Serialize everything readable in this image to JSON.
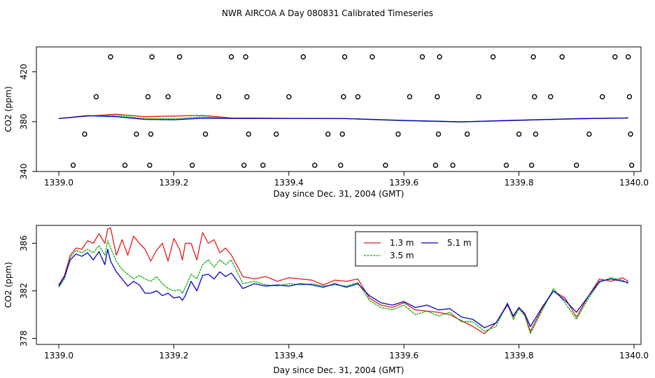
{
  "title": "NWR AIRCOA A  Day 080831  Calibrated Timeseries",
  "chart_data": [
    {
      "type": "line",
      "panel": "top",
      "title": "NWR AIRCOA A  Day 080831  Calibrated Timeseries",
      "xlabel": "Day since Dec. 31, 2004 (GMT)",
      "ylabel": "CO2 (ppm)",
      "xlim": [
        1339.0,
        1340.0
      ],
      "ylim": [
        340,
        440
      ],
      "xticks": [
        "1339.0",
        "1339.2",
        "1339.4",
        "1339.6",
        "1339.8",
        "1340.0"
      ],
      "yticks": [
        "340",
        "380",
        "420"
      ],
      "yticks_values": [
        340,
        380,
        420
      ],
      "xticks_values": [
        1339.0,
        1339.2,
        1339.4,
        1339.6,
        1339.8,
        1340.0
      ],
      "series": [
        {
          "name": "1.3 m",
          "color": "#e41a1c",
          "x": [
            1339.0,
            1339.05,
            1339.1,
            1339.15,
            1339.2,
            1339.25,
            1339.3,
            1339.4,
            1339.5,
            1339.6,
            1339.7,
            1339.8,
            1339.9,
            1339.99
          ],
          "y": [
            382.5,
            384.5,
            386.0,
            384.0,
            384.5,
            385.0,
            383.0,
            382.6,
            382.4,
            380.8,
            379.8,
            381.0,
            382.5,
            383.0
          ]
        },
        {
          "name": "3.5 m",
          "color": "#00b000",
          "x": [
            1339.0,
            1339.05,
            1339.1,
            1339.15,
            1339.2,
            1339.25,
            1339.3,
            1339.4,
            1339.5,
            1339.6,
            1339.7,
            1339.8,
            1339.9,
            1339.99
          ],
          "y": [
            382.5,
            384.8,
            385.0,
            382.5,
            382.2,
            383.8,
            382.8,
            382.6,
            382.5,
            380.8,
            379.8,
            381.2,
            382.3,
            383.0
          ]
        },
        {
          "name": "5.1 m",
          "color": "#0000cc",
          "x": [
            1339.0,
            1339.05,
            1339.1,
            1339.15,
            1339.2,
            1339.25,
            1339.3,
            1339.4,
            1339.5,
            1339.6,
            1339.7,
            1339.8,
            1339.9,
            1339.99
          ],
          "y": [
            382.5,
            384.8,
            384.0,
            381.8,
            381.5,
            382.8,
            382.6,
            382.6,
            382.5,
            381.0,
            379.9,
            381.2,
            382.3,
            383.0
          ]
        }
      ],
      "points": {
        "name": "calibration flags",
        "marker": "open circle",
        "x": [
          1339.025,
          1339.045,
          1339.065,
          1339.09,
          1339.115,
          1339.135,
          1339.155,
          1339.158,
          1339.16,
          1339.162,
          1339.19,
          1339.21,
          1339.232,
          1339.255,
          1339.278,
          1339.3,
          1339.322,
          1339.325,
          1339.327,
          1339.33,
          1339.355,
          1339.378,
          1339.4,
          1339.425,
          1339.445,
          1339.468,
          1339.49,
          1339.493,
          1339.495,
          1339.497,
          1339.52,
          1339.545,
          1339.568,
          1339.59,
          1339.61,
          1339.632,
          1339.655,
          1339.658,
          1339.66,
          1339.662,
          1339.685,
          1339.71,
          1339.73,
          1339.755,
          1339.778,
          1339.8,
          1339.822,
          1339.825,
          1339.827,
          1339.829,
          1339.855,
          1339.875,
          1339.9,
          1339.922,
          1339.945,
          1339.967,
          1339.99,
          1339.992,
          1339.994,
          1339.996
        ],
        "y": [
          345,
          370,
          400,
          432,
          345,
          370,
          400,
          345,
          370,
          432,
          400,
          432,
          345,
          370,
          400,
          432,
          345,
          432,
          400,
          370,
          345,
          370,
          400,
          432,
          345,
          370,
          345,
          370,
          400,
          432,
          400,
          432,
          345,
          370,
          400,
          432,
          345,
          400,
          370,
          432,
          345,
          370,
          400,
          432,
          345,
          370,
          345,
          432,
          400,
          370,
          400,
          432,
          345,
          370,
          400,
          432,
          432,
          400,
          370,
          345
        ]
      }
    },
    {
      "type": "line",
      "panel": "bottom",
      "xlabel": "Day since Dec. 31, 2004 (GMT)",
      "ylabel": "CO2 (ppm)",
      "xlim": [
        1339.0,
        1340.0
      ],
      "ylim": [
        377.5,
        387.5
      ],
      "xticks": [
        "1339.0",
        "1339.2",
        "1339.4",
        "1339.6",
        "1339.8",
        "1340.0"
      ],
      "xticks_values": [
        1339.0,
        1339.2,
        1339.4,
        1339.6,
        1339.8,
        1340.0
      ],
      "yticks": [
        "378",
        "382",
        "386"
      ],
      "yticks_values": [
        378,
        382,
        386
      ],
      "legend": {
        "placement": "top-right",
        "entries": [
          "1.3 m",
          "3.5 m",
          "5.1 m"
        ]
      },
      "series": [
        {
          "name": "1.3 m",
          "color": "#e41a1c",
          "x": [
            1339.0,
            1339.01,
            1339.02,
            1339.03,
            1339.04,
            1339.05,
            1339.06,
            1339.07,
            1339.08,
            1339.085,
            1339.09,
            1339.1,
            1339.11,
            1339.12,
            1339.13,
            1339.14,
            1339.15,
            1339.16,
            1339.17,
            1339.18,
            1339.19,
            1339.2,
            1339.21,
            1339.215,
            1339.22,
            1339.23,
            1339.24,
            1339.25,
            1339.26,
            1339.27,
            1339.28,
            1339.29,
            1339.3,
            1339.32,
            1339.34,
            1339.36,
            1339.38,
            1339.4,
            1339.42,
            1339.44,
            1339.46,
            1339.48,
            1339.5,
            1339.52,
            1339.54,
            1339.56,
            1339.58,
            1339.6,
            1339.62,
            1339.64,
            1339.66,
            1339.68,
            1339.7,
            1339.72,
            1339.74,
            1339.76,
            1339.78,
            1339.79,
            1339.8,
            1339.81,
            1339.82,
            1339.84,
            1339.86,
            1339.88,
            1339.9,
            1339.92,
            1339.94,
            1339.96,
            1339.98,
            1339.99
          ],
          "y": [
            382.5,
            383.3,
            385.0,
            385.6,
            385.5,
            386.2,
            386.0,
            386.8,
            386.0,
            387.2,
            387.3,
            385.0,
            386.3,
            385.0,
            386.6,
            386.0,
            385.5,
            384.5,
            385.4,
            386.0,
            384.5,
            386.4,
            385.5,
            384.6,
            386.0,
            386.0,
            384.6,
            386.9,
            386.0,
            386.3,
            385.2,
            385.6,
            385.0,
            383.2,
            383.0,
            383.2,
            382.8,
            383.1,
            383.0,
            382.9,
            382.5,
            382.9,
            382.8,
            383.0,
            381.4,
            380.8,
            380.6,
            381.0,
            380.4,
            380.3,
            380.2,
            380.0,
            379.5,
            379.0,
            378.4,
            379.3,
            380.8,
            379.8,
            380.6,
            380.0,
            378.6,
            380.5,
            382.0,
            381.4,
            379.8,
            381.5,
            383.0,
            382.8,
            383.1,
            382.8
          ]
        },
        {
          "name": "3.5 m",
          "color": "#00b000",
          "x": [
            1339.0,
            1339.01,
            1339.02,
            1339.03,
            1339.04,
            1339.05,
            1339.06,
            1339.07,
            1339.08,
            1339.085,
            1339.09,
            1339.1,
            1339.11,
            1339.12,
            1339.13,
            1339.14,
            1339.15,
            1339.16,
            1339.17,
            1339.18,
            1339.19,
            1339.2,
            1339.21,
            1339.215,
            1339.22,
            1339.23,
            1339.24,
            1339.25,
            1339.26,
            1339.27,
            1339.28,
            1339.29,
            1339.3,
            1339.32,
            1339.34,
            1339.36,
            1339.38,
            1339.4,
            1339.42,
            1339.44,
            1339.46,
            1339.48,
            1339.5,
            1339.52,
            1339.54,
            1339.56,
            1339.58,
            1339.6,
            1339.62,
            1339.64,
            1339.66,
            1339.68,
            1339.7,
            1339.72,
            1339.74,
            1339.76,
            1339.78,
            1339.79,
            1339.8,
            1339.81,
            1339.82,
            1339.84,
            1339.86,
            1339.88,
            1339.9,
            1339.92,
            1339.94,
            1339.96,
            1339.98,
            1339.99
          ],
          "y": [
            382.3,
            383.0,
            384.8,
            385.4,
            385.2,
            385.5,
            385.2,
            385.8,
            385.0,
            386.2,
            385.6,
            384.5,
            383.8,
            383.4,
            383.0,
            383.3,
            383.0,
            382.8,
            383.2,
            382.6,
            382.2,
            382.0,
            382.1,
            381.8,
            382.3,
            383.4,
            383.0,
            384.2,
            384.6,
            384.0,
            384.6,
            384.2,
            384.6,
            382.6,
            382.8,
            382.5,
            382.4,
            382.6,
            382.5,
            382.6,
            382.4,
            382.5,
            382.4,
            382.7,
            381.2,
            380.6,
            380.4,
            380.8,
            380.0,
            380.3,
            379.9,
            380.2,
            379.4,
            379.4,
            378.6,
            379.0,
            381.0,
            379.6,
            380.5,
            379.9,
            378.4,
            380.3,
            382.2,
            381.0,
            379.6,
            381.3,
            382.7,
            383.1,
            382.9,
            382.6
          ]
        },
        {
          "name": "5.1 m",
          "color": "#0000cc",
          "x": [
            1339.0,
            1339.01,
            1339.02,
            1339.03,
            1339.04,
            1339.05,
            1339.06,
            1339.07,
            1339.08,
            1339.085,
            1339.09,
            1339.1,
            1339.11,
            1339.12,
            1339.13,
            1339.14,
            1339.15,
            1339.16,
            1339.17,
            1339.18,
            1339.19,
            1339.2,
            1339.21,
            1339.215,
            1339.22,
            1339.23,
            1339.24,
            1339.25,
            1339.26,
            1339.27,
            1339.28,
            1339.29,
            1339.3,
            1339.32,
            1339.34,
            1339.36,
            1339.38,
            1339.4,
            1339.42,
            1339.44,
            1339.46,
            1339.48,
            1339.5,
            1339.52,
            1339.54,
            1339.56,
            1339.58,
            1339.6,
            1339.62,
            1339.64,
            1339.66,
            1339.68,
            1339.7,
            1339.72,
            1339.74,
            1339.76,
            1339.78,
            1339.79,
            1339.8,
            1339.81,
            1339.82,
            1339.84,
            1339.86,
            1339.88,
            1339.9,
            1339.92,
            1339.94,
            1339.96,
            1339.98,
            1339.99
          ],
          "y": [
            382.4,
            383.2,
            384.6,
            385.1,
            384.9,
            385.2,
            384.6,
            385.3,
            384.2,
            385.5,
            384.5,
            383.6,
            383.0,
            382.4,
            382.8,
            382.5,
            381.8,
            381.8,
            382.0,
            381.6,
            381.8,
            381.4,
            381.5,
            381.2,
            381.6,
            382.8,
            382.0,
            383.3,
            383.4,
            383.0,
            383.6,
            383.2,
            383.5,
            382.2,
            382.6,
            382.4,
            382.5,
            382.4,
            382.6,
            382.5,
            382.3,
            382.6,
            382.3,
            382.6,
            381.6,
            381.0,
            380.8,
            381.1,
            380.6,
            380.8,
            380.4,
            380.5,
            379.8,
            379.6,
            378.9,
            379.3,
            380.9,
            379.9,
            380.6,
            380.1,
            379.0,
            380.6,
            382.0,
            381.2,
            380.2,
            381.5,
            382.8,
            383.0,
            382.8,
            382.7
          ]
        }
      ]
    }
  ]
}
